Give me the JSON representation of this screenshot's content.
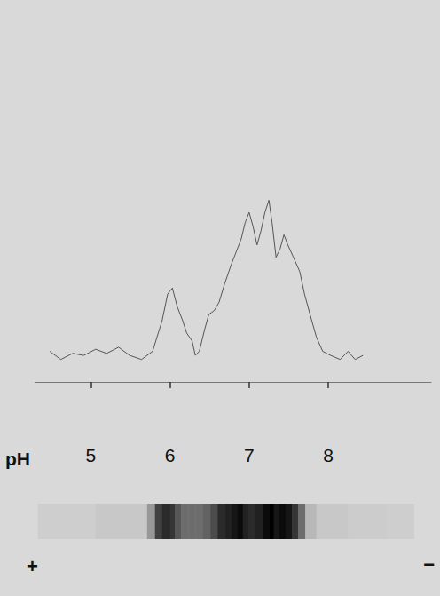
{
  "chart_data": [
    {
      "type": "line",
      "xlabel": "pH",
      "x": [
        4.48,
        4.62,
        4.77,
        4.91,
        5.06,
        5.2,
        5.35,
        5.49,
        5.64,
        5.78,
        5.9,
        5.97,
        6.03,
        6.09,
        6.16,
        6.21,
        6.28,
        6.32,
        6.37,
        6.44,
        6.49,
        6.56,
        6.62,
        6.69,
        6.77,
        6.83,
        6.9,
        6.95,
        7.0,
        7.05,
        7.1,
        7.15,
        7.2,
        7.25,
        7.29,
        7.34,
        7.39,
        7.44,
        7.49,
        7.56,
        7.64,
        7.7,
        7.77,
        7.85,
        7.93,
        8.03,
        8.15,
        8.25,
        8.34,
        8.44
      ],
      "values": [
        15,
        11,
        14,
        13,
        16,
        14,
        17,
        13,
        11,
        15,
        30,
        43,
        46,
        37,
        30,
        24,
        20,
        13,
        15,
        26,
        33,
        35,
        39,
        48,
        57,
        63,
        70,
        78,
        83,
        76,
        67,
        74,
        83,
        89,
        78,
        61,
        65,
        72,
        67,
        61,
        54,
        43,
        33,
        22,
        15,
        13,
        11,
        15,
        11,
        13
      ],
      "color": "#555555",
      "xlim": [
        4.3,
        9.3
      ],
      "xticks": [
        5,
        6,
        7,
        8
      ],
      "ylim": [
        0,
        100
      ],
      "tick_labels": "x",
      "grid": false
    },
    {
      "type": "heatmap",
      "bins": [
        4.33,
        5.06,
        5.71,
        5.81,
        5.9,
        6.0,
        6.06,
        6.14,
        6.23,
        6.32,
        6.41,
        6.51,
        6.6,
        6.69,
        6.77,
        6.85,
        6.92,
        6.99,
        7.07,
        7.17,
        7.25,
        7.31,
        7.38,
        7.46,
        7.54,
        7.62,
        7.71,
        7.85,
        8.25,
        8.74,
        9.08
      ],
      "values": [
        0.05,
        0.08,
        0.3,
        0.7,
        0.8,
        0.75,
        0.6,
        0.5,
        0.5,
        0.5,
        0.55,
        0.65,
        0.8,
        0.85,
        0.9,
        0.95,
        0.85,
        0.8,
        0.85,
        0.95,
        1.0,
        0.9,
        0.95,
        0.9,
        0.75,
        0.5,
        0.15,
        0.08,
        0.06,
        0.05
      ],
      "zlim": [
        0,
        1
      ],
      "xlim": [
        4.3,
        9.3
      ],
      "tick_labels": false,
      "annotations": [
        "+",
        "−"
      ]
    }
  ]
}
